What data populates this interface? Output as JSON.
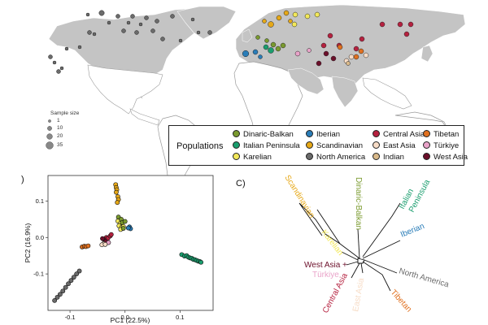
{
  "size_legend": {
    "title": "Sample size",
    "labels": [
      "1",
      "10",
      "20",
      "35"
    ]
  },
  "legend": {
    "title": "Populations",
    "items": [
      {
        "label": "Dinaric-Balkan",
        "color": "#7a9a2e"
      },
      {
        "label": "Italian Peninsula",
        "color": "#1a9e6e"
      },
      {
        "label": "Karelian",
        "color": "#f2e85a"
      },
      {
        "label": "Iberian",
        "color": "#2a7db8"
      },
      {
        "label": "Scandinavian",
        "color": "#e6a817"
      },
      {
        "label": "North America",
        "color": "#6b6b6b"
      },
      {
        "label": "Central Asia",
        "color": "#b5213f"
      },
      {
        "label": "East Asia",
        "color": "#f7dcc6"
      },
      {
        "label": "Indian",
        "color": "#d9b98a"
      },
      {
        "label": "Tibetan",
        "color": "#e0701f"
      },
      {
        "label": "Türkiye",
        "color": "#e9a3c9"
      },
      {
        "label": "West Asia",
        "color": "#6b0f2a"
      }
    ]
  },
  "panel_b": {
    "label": ")",
    "chart_data": {
      "type": "scatter",
      "xlabel": "PC1 (22.5%)",
      "ylabel": "PC2 (16.9%)",
      "xlim": [
        -0.14,
        0.16
      ],
      "ylim": [
        -0.2,
        0.17
      ],
      "xticks": [
        "-0.1",
        "0.0",
        "0.1"
      ],
      "xtick_values": [
        -0.1,
        0.0,
        0.1
      ],
      "yticks": [
        "0.1",
        "0.0",
        "-0.1"
      ],
      "ytick_values": [
        0.1,
        0.0,
        -0.1
      ],
      "series": [
        {
          "name": "Scandinavian",
          "color": "#e6a817",
          "points": [
            [
              -0.017,
              0.145
            ],
            [
              -0.016,
              0.137
            ],
            [
              -0.015,
              0.131
            ],
            [
              -0.016,
              0.124
            ],
            [
              -0.013,
              0.112
            ],
            [
              -0.012,
              0.104
            ],
            [
              -0.014,
              0.096
            ]
          ]
        },
        {
          "name": "Karelian",
          "color": "#f2e85a",
          "points": [
            [
              -0.013,
              0.045
            ],
            [
              -0.009,
              0.038
            ],
            [
              -0.011,
              0.032
            ],
            [
              -0.006,
              0.028
            ],
            [
              -0.008,
              0.022
            ],
            [
              -0.003,
              0.03
            ]
          ]
        },
        {
          "name": "Dinaric-Balkan",
          "color": "#7a9a2e",
          "points": [
            [
              -0.012,
              0.056
            ],
            [
              -0.007,
              0.05
            ],
            [
              -0.005,
              0.041
            ],
            [
              0.0,
              0.044
            ],
            [
              -0.003,
              0.025
            ]
          ]
        },
        {
          "name": "Iberian",
          "color": "#2a7db8",
          "points": [
            [
              0.008,
              0.029
            ],
            [
              0.01,
              0.024
            ],
            [
              0.006,
              0.026
            ]
          ]
        },
        {
          "name": "Italian Peninsula",
          "color": "#1a9e6e",
          "points": [
            [
              0.103,
              -0.047
            ],
            [
              0.108,
              -0.051
            ],
            [
              0.112,
              -0.05
            ],
            [
              0.115,
              -0.054
            ],
            [
              0.118,
              -0.056
            ],
            [
              0.121,
              -0.057
            ],
            [
              0.124,
              -0.06
            ],
            [
              0.127,
              -0.061
            ],
            [
              0.13,
              -0.063
            ],
            [
              0.133,
              -0.065
            ],
            [
              0.136,
              -0.066
            ],
            [
              0.138,
              -0.068
            ]
          ]
        },
        {
          "name": "Central Asia",
          "color": "#b5213f",
          "points": [
            [
              -0.034,
              0.0
            ],
            [
              -0.031,
              -0.002
            ],
            [
              -0.027,
              0.004
            ],
            [
              -0.025,
              0.008
            ]
          ]
        },
        {
          "name": "West Asia",
          "color": "#6b0f2a",
          "points": [
            [
              -0.038,
              -0.006
            ],
            [
              -0.035,
              -0.011
            ],
            [
              -0.041,
              -0.003
            ]
          ]
        },
        {
          "name": "Türkiye",
          "color": "#e9a3c9",
          "points": [
            [
              -0.03,
              -0.014
            ]
          ]
        },
        {
          "name": "East Asia",
          "color": "#f7dcc6",
          "points": [
            [
              -0.039,
              -0.017
            ],
            [
              -0.042,
              -0.02
            ],
            [
              -0.036,
              -0.019
            ]
          ]
        },
        {
          "name": "Tibetan",
          "color": "#e0701f",
          "points": [
            [
              -0.078,
              -0.026
            ],
            [
              -0.074,
              -0.024
            ],
            [
              -0.071,
              -0.025
            ],
            [
              -0.067,
              -0.023
            ]
          ]
        },
        {
          "name": "North America",
          "color": "#6b6b6b",
          "points": [
            [
              -0.083,
              -0.092
            ],
            [
              -0.088,
              -0.1
            ],
            [
              -0.093,
              -0.109
            ],
            [
              -0.098,
              -0.118
            ],
            [
              -0.103,
              -0.127
            ],
            [
              -0.108,
              -0.137
            ],
            [
              -0.113,
              -0.147
            ],
            [
              -0.118,
              -0.156
            ],
            [
              -0.123,
              -0.164
            ],
            [
              -0.128,
              -0.173
            ]
          ]
        }
      ]
    }
  },
  "panel_c": {
    "label": "C)",
    "tree": {
      "branches": [
        {
          "name": "Scandinavian",
          "label": "Scandinavian",
          "color": "#e6a817"
        },
        {
          "name": "Dinaric-Balkan",
          "label": "Dinaric-Balkan",
          "color": "#7a9a2e"
        },
        {
          "name": "Italian Peninsula",
          "label_line1": "Italian",
          "label_line2": "Peninsula",
          "color": "#1a9e6e"
        },
        {
          "name": "Iberian",
          "label": "Iberian",
          "color": "#2a7db8"
        },
        {
          "name": "Karelian",
          "label": "Karelian",
          "color": "#f2e85a"
        },
        {
          "name": "West Asia + Türkiye",
          "label_line1": "West Asia +",
          "label_line2": "Türkiye",
          "color1": "#6b0f2a",
          "color2": "#e9a3c9"
        },
        {
          "name": "Central Asia",
          "label": "Central Asia",
          "color": "#b5213f"
        },
        {
          "name": "East Asia",
          "label": "East Asia",
          "color": "#f7dcc6"
        },
        {
          "name": "Tibetan",
          "label": "Tibetan",
          "color": "#e0701f"
        },
        {
          "name": "North America",
          "label": "North America",
          "color": "#6b6b6b"
        }
      ]
    }
  }
}
